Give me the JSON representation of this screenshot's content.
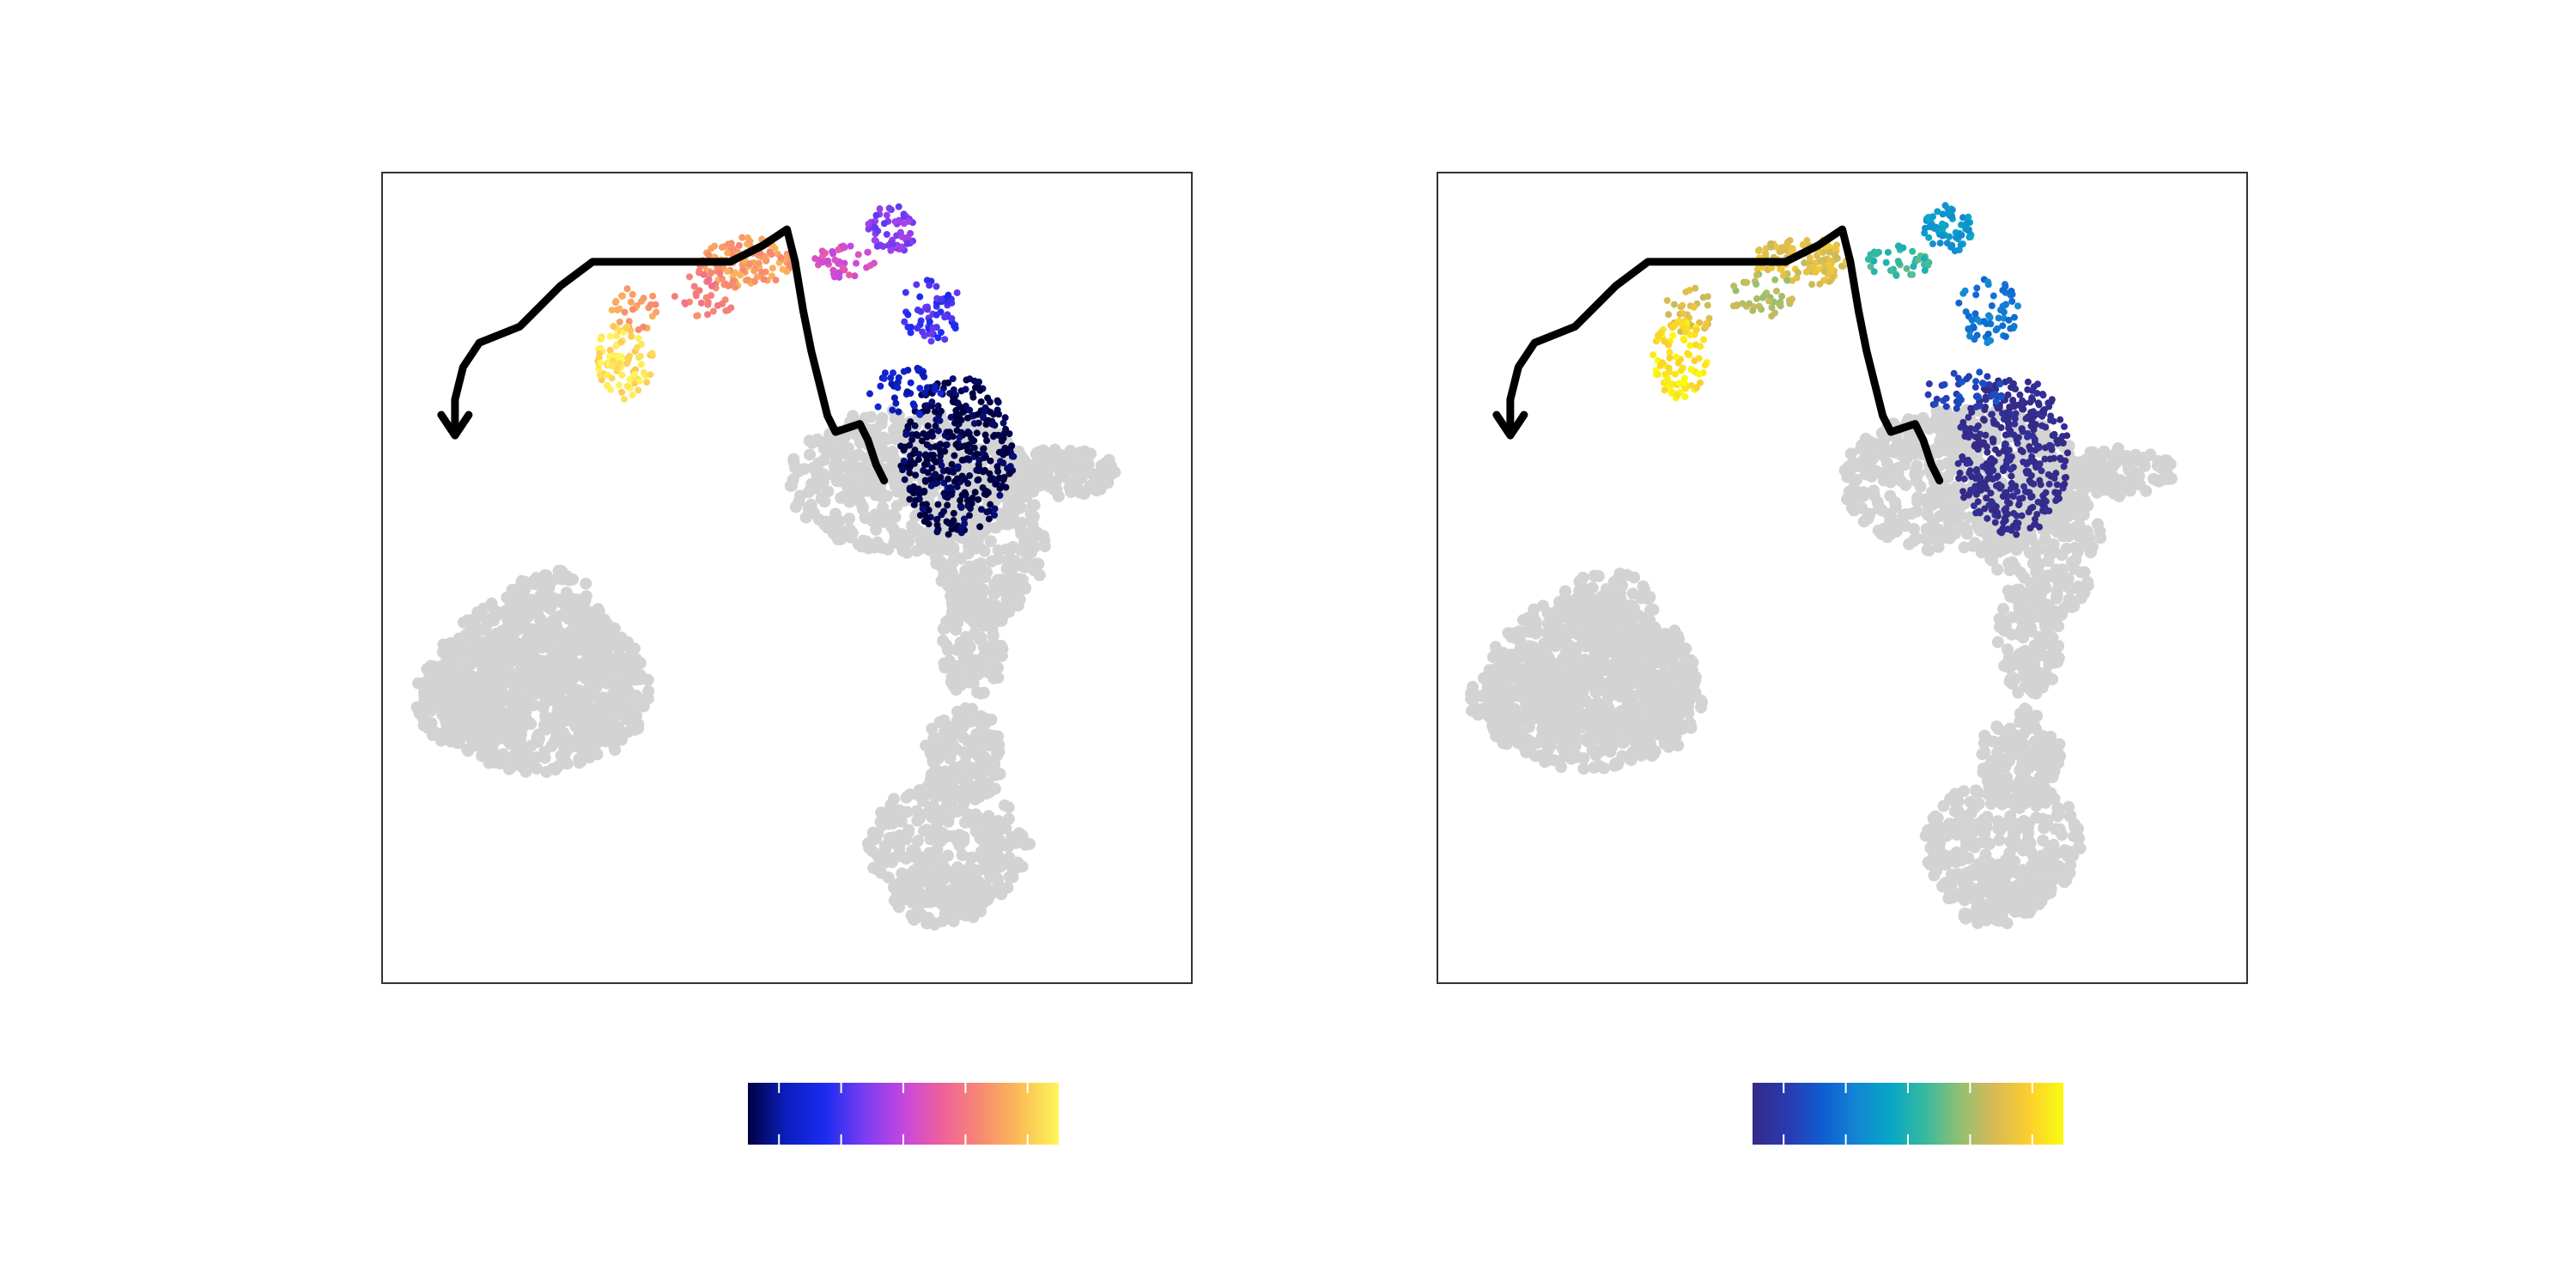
{
  "chart_data": [
    {
      "type": "scatter",
      "title": "",
      "xlabel": "",
      "ylabel": "",
      "grid": false,
      "background_color": "#d3d3d3",
      "trajectory_color": "#000000",
      "trajectory": [
        [
          0.62,
          0.38
        ],
        [
          0.61,
          0.36
        ],
        [
          0.6,
          0.33
        ],
        [
          0.59,
          0.31
        ],
        [
          0.56,
          0.32
        ],
        [
          0.55,
          0.3
        ],
        [
          0.54,
          0.26
        ],
        [
          0.53,
          0.22
        ],
        [
          0.52,
          0.17
        ],
        [
          0.51,
          0.11
        ],
        [
          0.5,
          0.07
        ],
        [
          0.47,
          0.09
        ],
        [
          0.43,
          0.11
        ],
        [
          0.38,
          0.11
        ],
        [
          0.32,
          0.11
        ],
        [
          0.26,
          0.11
        ],
        [
          0.22,
          0.14
        ],
        [
          0.17,
          0.19
        ],
        [
          0.12,
          0.21
        ],
        [
          0.1,
          0.24
        ],
        [
          0.09,
          0.28
        ],
        [
          0.09,
          0.32
        ]
      ],
      "colorbar": {
        "stops": [
          "#000040",
          "#0b1fbf",
          "#1c2cf0",
          "#7b3df0",
          "#c447e0",
          "#f0609a",
          "#f78a70",
          "#fbbd55",
          "#fff65a"
        ],
        "ticks": 5
      }
    },
    {
      "type": "scatter",
      "title": "",
      "xlabel": "",
      "ylabel": "",
      "grid": false,
      "background_color": "#d3d3d3",
      "trajectory_color": "#000000",
      "trajectory": [
        [
          0.62,
          0.38
        ],
        [
          0.61,
          0.36
        ],
        [
          0.6,
          0.33
        ],
        [
          0.59,
          0.31
        ],
        [
          0.56,
          0.32
        ],
        [
          0.55,
          0.3
        ],
        [
          0.54,
          0.26
        ],
        [
          0.53,
          0.22
        ],
        [
          0.52,
          0.17
        ],
        [
          0.51,
          0.11
        ],
        [
          0.5,
          0.07
        ],
        [
          0.47,
          0.09
        ],
        [
          0.43,
          0.11
        ],
        [
          0.38,
          0.11
        ],
        [
          0.32,
          0.11
        ],
        [
          0.26,
          0.11
        ],
        [
          0.22,
          0.14
        ],
        [
          0.17,
          0.19
        ],
        [
          0.12,
          0.21
        ],
        [
          0.1,
          0.24
        ],
        [
          0.09,
          0.28
        ],
        [
          0.09,
          0.32
        ]
      ],
      "colorbar": {
        "stops": [
          "#352a87",
          "#2a3ab0",
          "#0f5ccf",
          "#1485d4",
          "#06a7c6",
          "#38b99e",
          "#92bf73",
          "#d9ba56",
          "#fcce2e",
          "#f9fb0e"
        ],
        "ticks": 5
      }
    }
  ]
}
